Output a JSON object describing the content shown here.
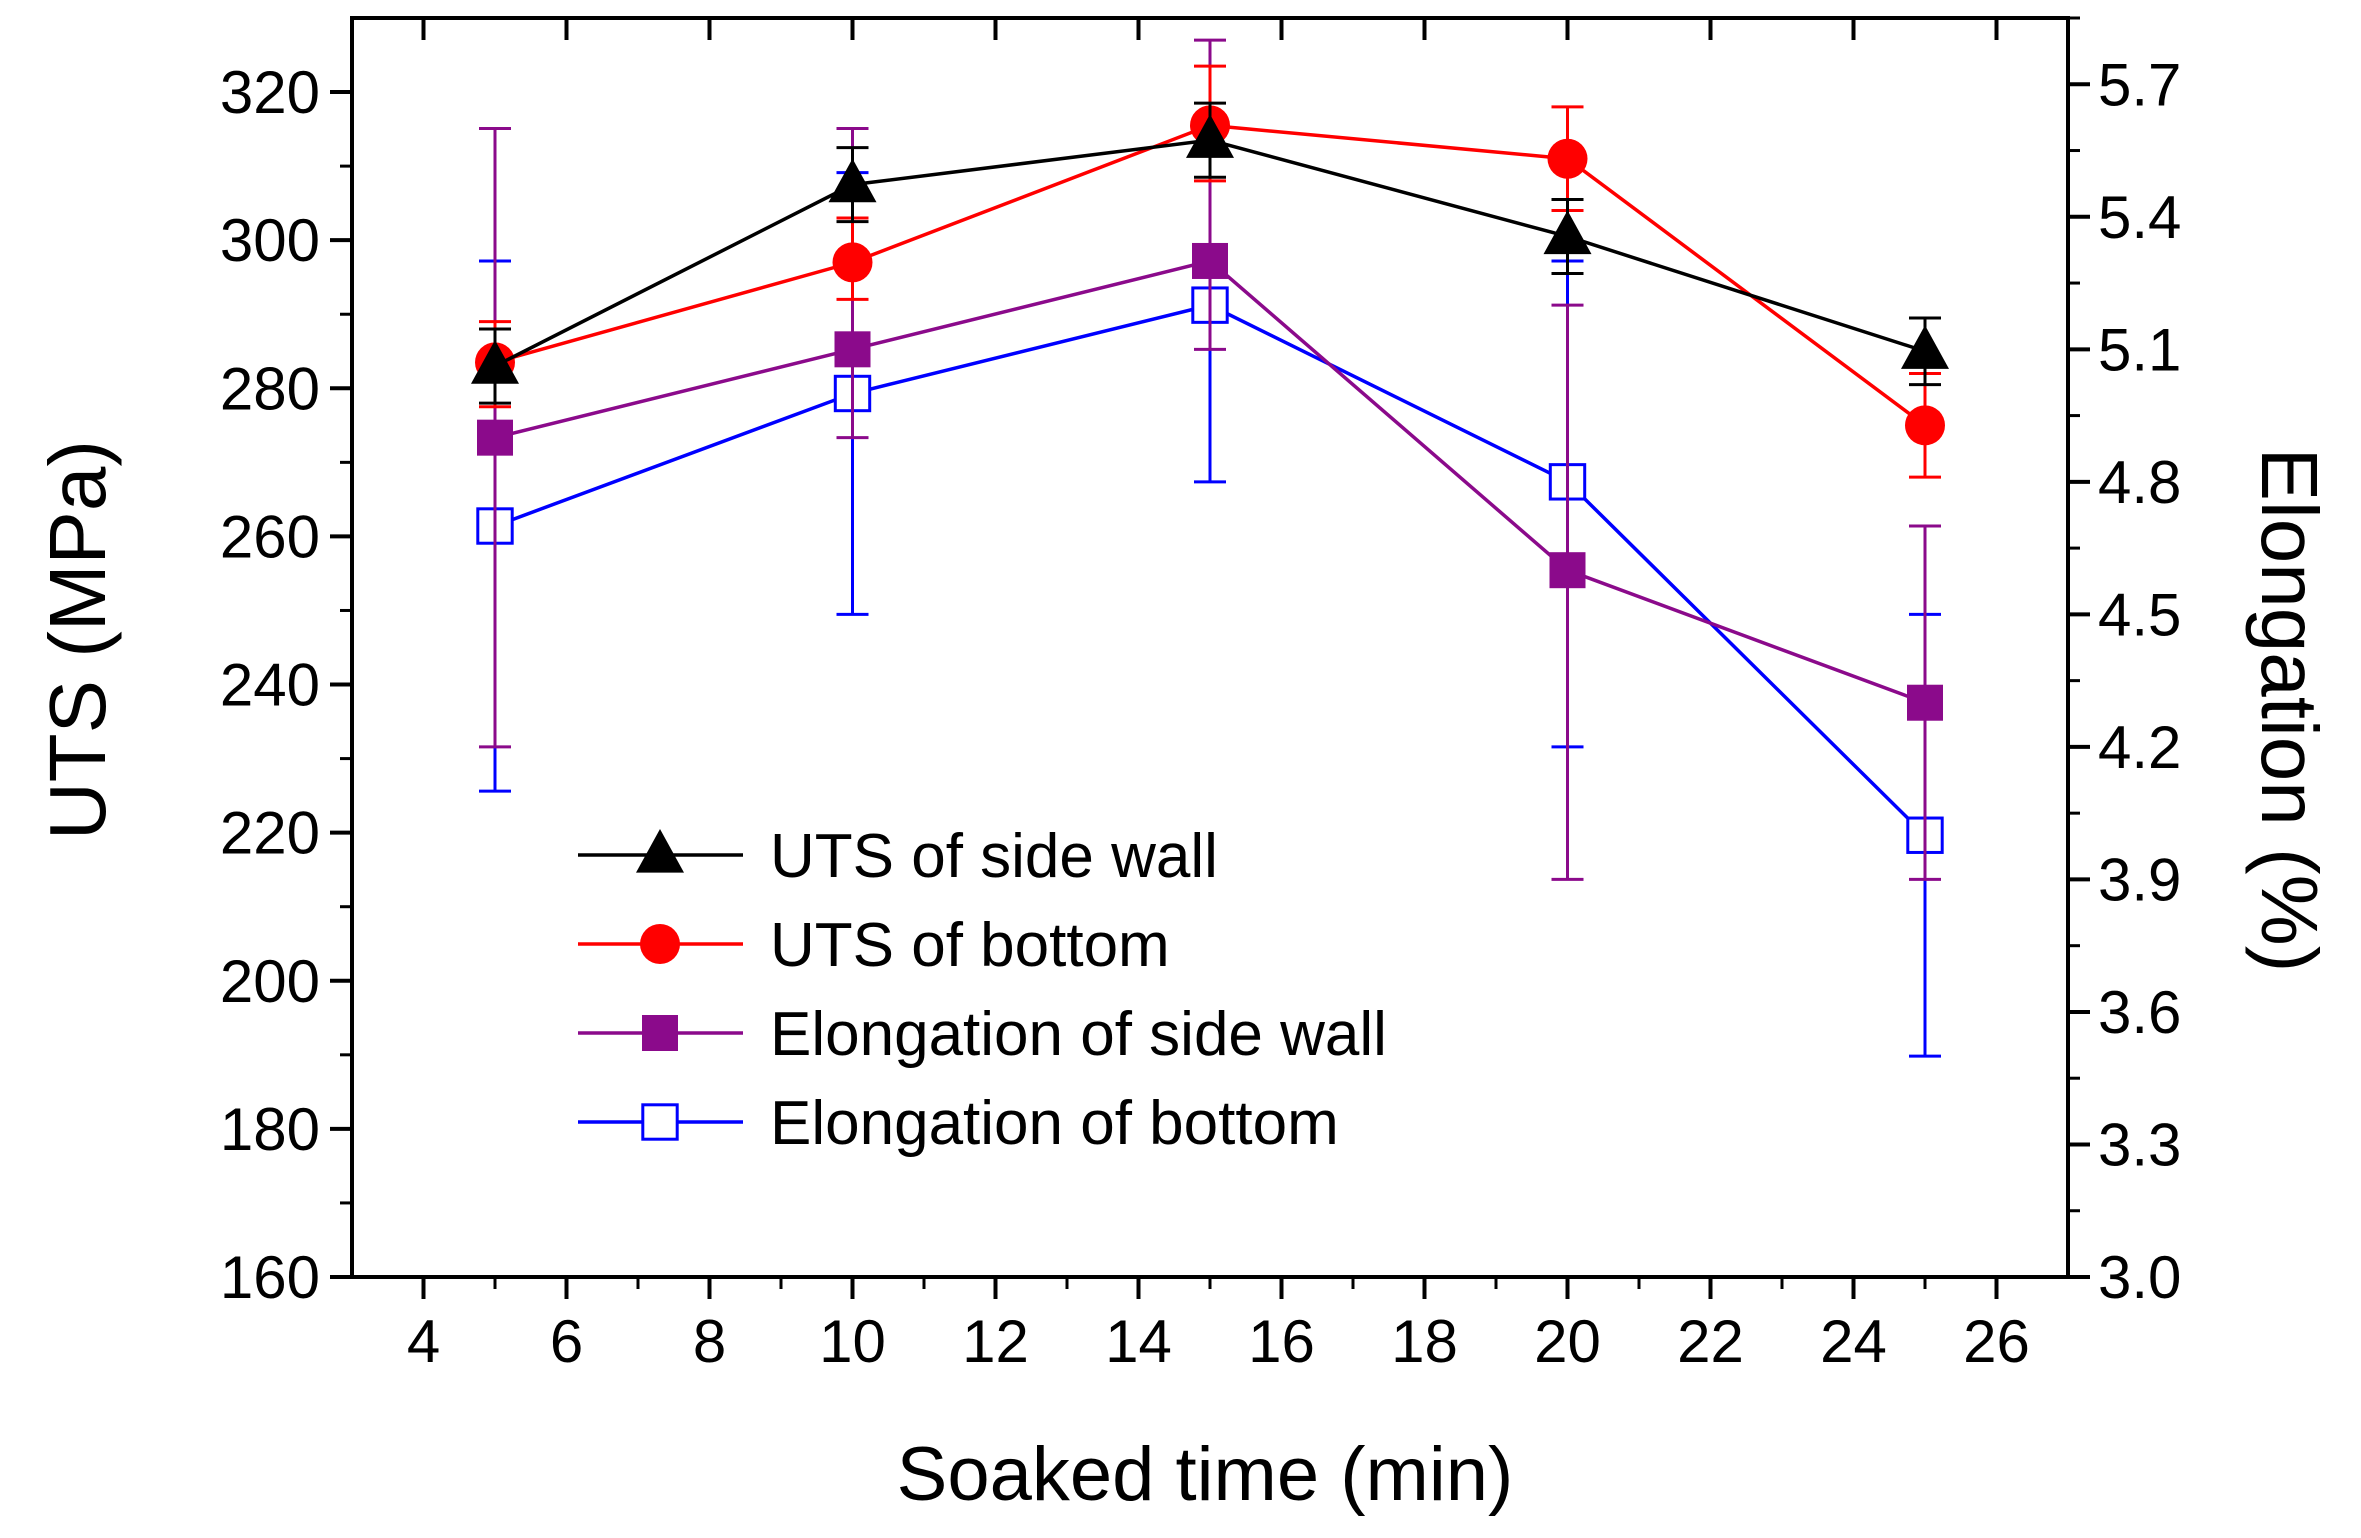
{
  "chart_data": {
    "type": "line",
    "title": "",
    "xlabel": "Soaked time (min)",
    "ylabel_left": "UTS (MPa)",
    "ylabel_right": "Elongation (%)",
    "xlim": [
      3,
      27
    ],
    "x_ticks": [
      4,
      6,
      8,
      10,
      12,
      14,
      16,
      18,
      20,
      22,
      24,
      26
    ],
    "ylim_left": [
      160,
      330
    ],
    "y_ticks_left": [
      160,
      180,
      200,
      220,
      240,
      260,
      280,
      300,
      320
    ],
    "ylim_right": [
      3.0,
      5.85
    ],
    "y_ticks_right": [
      "3.0",
      "3.3",
      "3.6",
      "3.9",
      "4.2",
      "4.5",
      "4.8",
      "5.1",
      "5.4",
      "5.7"
    ],
    "grid": false,
    "legend_position": "lower-left",
    "series": [
      {
        "name": "UTS of side wall",
        "axis": "left",
        "color": "#000000",
        "marker": "triangle",
        "x": [
          5,
          10,
          15,
          20,
          25
        ],
        "values": [
          283,
          307.5,
          313.5,
          300.5,
          285
        ],
        "err_low": [
          278,
          302.5,
          308.5,
          295.5,
          280.5
        ],
        "err_high": [
          288,
          312.5,
          318.5,
          305.5,
          289.5
        ]
      },
      {
        "name": "UTS of bottom",
        "axis": "left",
        "color": "#ff0000",
        "marker": "circle",
        "x": [
          5,
          10,
          15,
          20,
          25
        ],
        "values": [
          283.5,
          297,
          315.5,
          311,
          275
        ],
        "err_low": [
          277.5,
          292,
          308,
          304,
          268
        ],
        "err_high": [
          289,
          303,
          323.5,
          318,
          282
        ]
      },
      {
        "name": "Elongation of side wall",
        "axis": "right",
        "color": "#8b0a8b",
        "marker": "square-filled",
        "x": [
          5,
          10,
          15,
          20,
          25
        ],
        "values": [
          4.9,
          5.1,
          5.3,
          4.6,
          4.3
        ],
        "err_low": [
          4.2,
          4.9,
          5.1,
          3.9,
          3.9
        ],
        "err_high": [
          5.6,
          5.6,
          5.8,
          5.2,
          4.7
        ]
      },
      {
        "name": "Elongation of bottom",
        "axis": "right",
        "color": "#0000ff",
        "marker": "square-open",
        "x": [
          5,
          10,
          15,
          20,
          25
        ],
        "values": [
          4.7,
          5.0,
          5.2,
          4.8,
          4.0
        ],
        "err_low": [
          4.1,
          4.5,
          4.8,
          4.2,
          3.5
        ],
        "err_high": [
          5.3,
          5.5,
          5.6,
          5.3,
          4.5
        ]
      }
    ]
  }
}
